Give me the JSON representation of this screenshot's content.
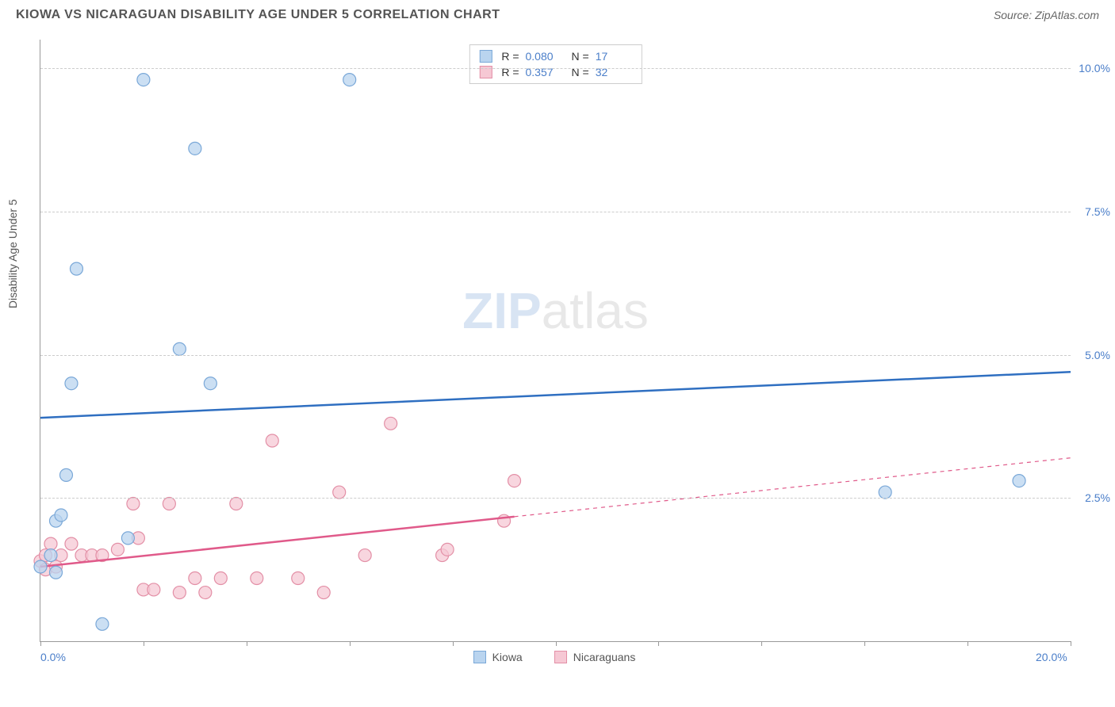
{
  "header": {
    "title": "KIOWA VS NICARAGUAN DISABILITY AGE UNDER 5 CORRELATION CHART",
    "source": "Source: ZipAtlas.com"
  },
  "watermark": {
    "zip": "ZIP",
    "atlas": "atlas"
  },
  "chart": {
    "type": "scatter",
    "y_axis_title": "Disability Age Under 5",
    "background_color": "#ffffff",
    "grid_color": "#cccccc",
    "axis_color": "#999999",
    "xlim": [
      0,
      20
    ],
    "ylim": [
      0,
      10.5
    ],
    "x_ticks": [
      0,
      2,
      4,
      6,
      8,
      10,
      12,
      14,
      16,
      18,
      20
    ],
    "x_labels": [
      {
        "v": 0,
        "t": "0.0%"
      },
      {
        "v": 20,
        "t": "20.0%"
      }
    ],
    "y_gridlines": [
      {
        "v": 2.5,
        "t": "2.5%"
      },
      {
        "v": 5.0,
        "t": "5.0%"
      },
      {
        "v": 7.5,
        "t": "7.5%"
      },
      {
        "v": 10.0,
        "t": "10.0%"
      }
    ],
    "series": {
      "kiowa": {
        "label": "Kiowa",
        "fill": "#b9d4ef",
        "stroke": "#7aa8d8",
        "marker_radius": 8,
        "marker_opacity": 0.75,
        "trend_color": "#2f6fc1",
        "trend_width": 2.5,
        "trend_start": {
          "x": 0,
          "y": 3.9
        },
        "trend_end": {
          "x": 20,
          "y": 4.7
        },
        "trend_solid_until_x": 20,
        "R": "0.080",
        "N": "17",
        "points": [
          {
            "x": 0.0,
            "y": 1.3
          },
          {
            "x": 0.2,
            "y": 1.5
          },
          {
            "x": 0.3,
            "y": 1.2
          },
          {
            "x": 0.3,
            "y": 2.1
          },
          {
            "x": 0.4,
            "y": 2.2
          },
          {
            "x": 0.5,
            "y": 2.9
          },
          {
            "x": 0.6,
            "y": 4.5
          },
          {
            "x": 0.7,
            "y": 6.5
          },
          {
            "x": 1.2,
            "y": 0.3
          },
          {
            "x": 1.7,
            "y": 1.8
          },
          {
            "x": 2.0,
            "y": 9.8
          },
          {
            "x": 2.7,
            "y": 5.1
          },
          {
            "x": 3.0,
            "y": 8.6
          },
          {
            "x": 3.3,
            "y": 4.5
          },
          {
            "x": 6.0,
            "y": 9.8
          },
          {
            "x": 16.4,
            "y": 2.6
          },
          {
            "x": 19.0,
            "y": 2.8
          }
        ]
      },
      "nicaraguans": {
        "label": "Nicaraguans",
        "fill": "#f6c8d4",
        "stroke": "#e38fa6",
        "marker_radius": 8,
        "marker_opacity": 0.75,
        "trend_color": "#e05a8a",
        "trend_width": 2.5,
        "trend_start": {
          "x": 0,
          "y": 1.3
        },
        "trend_end": {
          "x": 20,
          "y": 3.2
        },
        "trend_solid_until_x": 9.2,
        "R": "0.357",
        "N": "32",
        "points": [
          {
            "x": 0.0,
            "y": 1.4
          },
          {
            "x": 0.1,
            "y": 1.5
          },
          {
            "x": 0.1,
            "y": 1.25
          },
          {
            "x": 0.2,
            "y": 1.7
          },
          {
            "x": 0.3,
            "y": 1.3
          },
          {
            "x": 0.4,
            "y": 1.5
          },
          {
            "x": 0.6,
            "y": 1.7
          },
          {
            "x": 0.8,
            "y": 1.5
          },
          {
            "x": 1.0,
            "y": 1.5
          },
          {
            "x": 1.2,
            "y": 1.5
          },
          {
            "x": 1.5,
            "y": 1.6
          },
          {
            "x": 1.8,
            "y": 2.4
          },
          {
            "x": 1.9,
            "y": 1.8
          },
          {
            "x": 2.0,
            "y": 0.9
          },
          {
            "x": 2.2,
            "y": 0.9
          },
          {
            "x": 2.5,
            "y": 2.4
          },
          {
            "x": 2.7,
            "y": 0.85
          },
          {
            "x": 3.0,
            "y": 1.1
          },
          {
            "x": 3.2,
            "y": 0.85
          },
          {
            "x": 3.5,
            "y": 1.1
          },
          {
            "x": 3.8,
            "y": 2.4
          },
          {
            "x": 4.2,
            "y": 1.1
          },
          {
            "x": 4.5,
            "y": 3.5
          },
          {
            "x": 5.0,
            "y": 1.1
          },
          {
            "x": 5.5,
            "y": 0.85
          },
          {
            "x": 5.8,
            "y": 2.6
          },
          {
            "x": 6.3,
            "y": 1.5
          },
          {
            "x": 6.8,
            "y": 3.8
          },
          {
            "x": 7.8,
            "y": 1.5
          },
          {
            "x": 7.9,
            "y": 1.6
          },
          {
            "x": 9.0,
            "y": 2.1
          },
          {
            "x": 9.2,
            "y": 2.8
          }
        ]
      }
    }
  },
  "bottom_legend": {
    "kiowa": "Kiowa",
    "nicaraguans": "Nicaraguans"
  }
}
